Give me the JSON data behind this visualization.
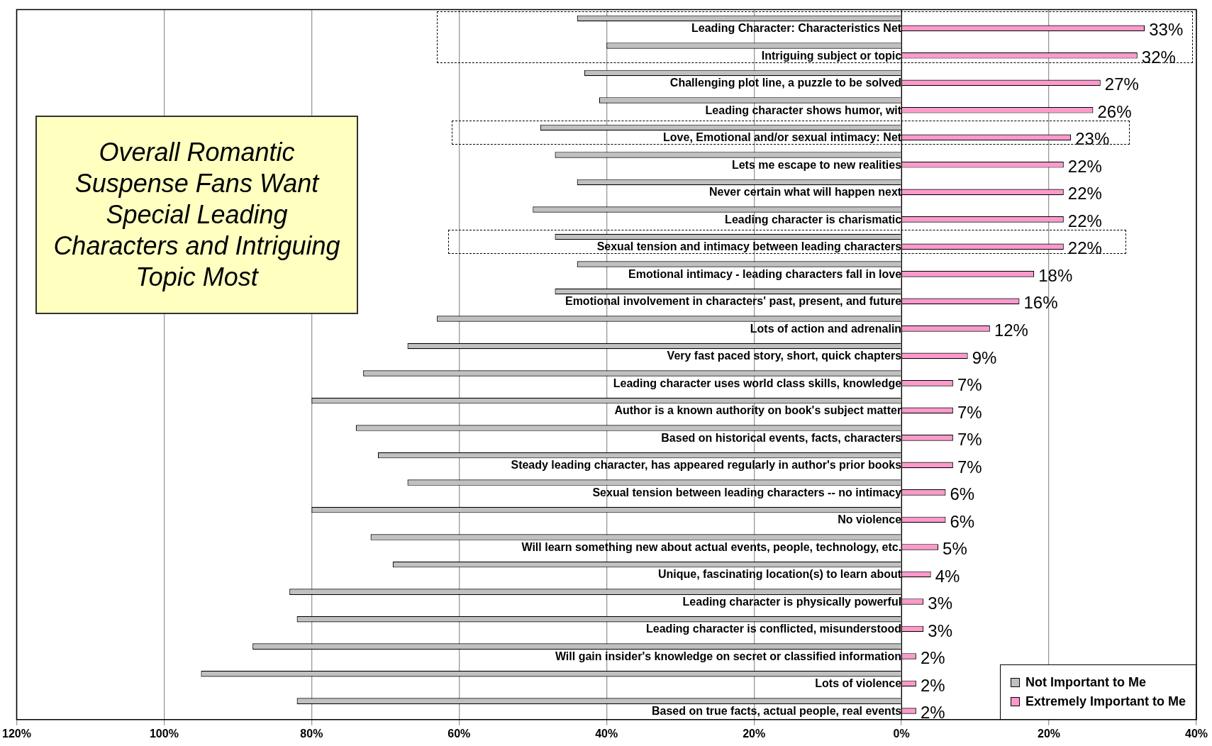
{
  "chart_data": {
    "type": "bar",
    "orientation": "horizontal",
    "title": "Overall Romantic Suspense Fans Want Special Leading Characters and Intriguing Topic Most",
    "categories": [
      "Leading Character: Characteristics Net",
      "Intriguing subject or topic",
      "Challenging plot line, a puzzle to be solved",
      "Leading character shows humor, wit",
      "Love, Emotional and/or sexual intimacy: Net",
      "Lets me escape to new realities",
      "Never certain what will happen next",
      "Leading character is charismatic",
      "Sexual tension and intimacy between leading characters",
      "Emotional intimacy - leading characters fall in love",
      "Emotional involvement in characters' past, present, and future",
      "Lots of action and adrenalin",
      "Very fast paced story, short, quick chapters",
      "Leading character uses world class skills, knowledge",
      "Author is a known authority on book's subject matter",
      "Based on historical events, facts, characters",
      "Steady leading character, has appeared regularly in author's prior books",
      "Sexual tension between leading characters -- no intimacy",
      "No violence",
      "Will learn something new about actual events, people, technology, etc.",
      "Unique, fascinating location(s) to learn about",
      "Leading character is physically powerful",
      "Leading character is conflicted, misunderstood",
      "Will gain insider's knowledge on secret or classified information",
      "Lots of violence",
      "Based on true facts, actual people, real events"
    ],
    "series": [
      {
        "name": "Not Important to Me",
        "color": "#c0c0c0",
        "values": [
          -44,
          -40,
          -43,
          -41,
          -49,
          -47,
          -44,
          -50,
          -47,
          -44,
          -47,
          -63,
          -67,
          -73,
          -80,
          -74,
          -71,
          -67,
          -80,
          -72,
          -69,
          -83,
          -82,
          -88,
          -95,
          -82
        ]
      },
      {
        "name": "Extremely Important to Me",
        "color": "#ff99cc",
        "values": [
          33,
          32,
          27,
          26,
          23,
          22,
          22,
          22,
          22,
          18,
          16,
          12,
          9,
          7,
          7,
          7,
          7,
          6,
          6,
          5,
          4,
          3,
          3,
          2,
          2,
          2
        ],
        "value_labels": [
          "33%",
          "32%",
          "27%",
          "26%",
          "23%",
          "22%",
          "22%",
          "22%",
          "22%",
          "18%",
          "16%",
          "12%",
          "9%",
          "7%",
          "7%",
          "7%",
          "7%",
          "6%",
          "6%",
          "5%",
          "4%",
          "3%",
          "3%",
          "2%",
          "2%",
          "2%"
        ]
      }
    ],
    "xlim": [
      -120,
      40
    ],
    "xticks": [
      {
        "value": -120,
        "label": "120%"
      },
      {
        "value": -100,
        "label": "100%"
      },
      {
        "value": -80,
        "label": "80%"
      },
      {
        "value": -60,
        "label": "60%"
      },
      {
        "value": -40,
        "label": "40%"
      },
      {
        "value": -20,
        "label": "20%"
      },
      {
        "value": 0,
        "label": "0%"
      },
      {
        "value": 20,
        "label": "20%"
      },
      {
        "value": 40,
        "label": "40%"
      }
    ],
    "grid": "x",
    "legend": "bottom right"
  }
}
